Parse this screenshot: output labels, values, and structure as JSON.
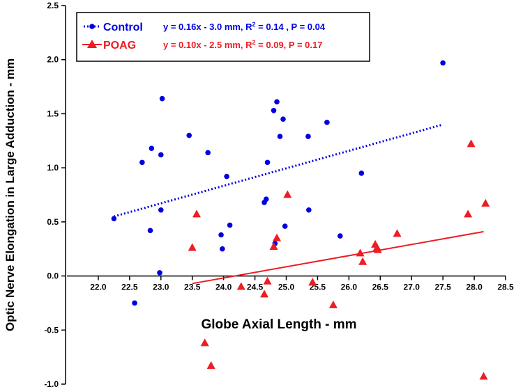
{
  "chart_data": {
    "type": "scatter",
    "xlabel": "Globe Axial Length - mm",
    "ylabel": "Optic Nerve Elongation in Large Adduction - mm",
    "xlim": [
      21.5,
      28.5
    ],
    "ylim": [
      -1.0,
      2.5
    ],
    "x_ticks": [
      "22.0",
      "22.5",
      "23.0",
      "23.5",
      "24.0",
      "24.5",
      "25.0",
      "25.5",
      "26.0",
      "26.5",
      "27.0",
      "27.5",
      "28.0",
      "28.5"
    ],
    "x_tick_values": [
      22.0,
      22.5,
      23.0,
      23.5,
      24.0,
      24.5,
      25.0,
      25.5,
      26.0,
      26.5,
      27.0,
      27.5,
      28.0,
      28.5
    ],
    "y_ticks": [
      "2.5",
      "2.0",
      "1.5",
      "1.0",
      "0.5",
      "0.0",
      "-0.5",
      "-1.0"
    ],
    "y_tick_values": [
      2.5,
      2.0,
      1.5,
      1.0,
      0.5,
      0.0,
      -0.5,
      -1.0
    ],
    "legend_position": "top-left",
    "colors": {
      "control": "#0000e0",
      "poag": "#ee1c24"
    },
    "series": [
      {
        "name": "Control",
        "marker": "circle",
        "line_style": "dotted",
        "fit_label": "y = 0.16x - 3.0 mm, R",
        "fit_sup": "2",
        "fit_tail": " = 0.14 , P = 0.04",
        "fit_line": [
          [
            22.25,
            0.55
          ],
          [
            27.5,
            1.4
          ]
        ],
        "points": [
          [
            22.25,
            0.53
          ],
          [
            22.58,
            -0.25
          ],
          [
            22.7,
            1.05
          ],
          [
            22.83,
            0.42
          ],
          [
            22.85,
            1.18
          ],
          [
            22.98,
            0.03
          ],
          [
            23.0,
            1.12
          ],
          [
            23.02,
            1.64
          ],
          [
            23.0,
            0.61
          ],
          [
            23.45,
            1.3
          ],
          [
            23.75,
            1.14
          ],
          [
            23.96,
            0.38
          ],
          [
            23.98,
            0.25
          ],
          [
            24.05,
            0.92
          ],
          [
            24.1,
            0.47
          ],
          [
            24.65,
            0.68
          ],
          [
            24.68,
            0.71
          ],
          [
            24.7,
            1.05
          ],
          [
            24.8,
            1.53
          ],
          [
            24.82,
            0.3
          ],
          [
            24.85,
            1.61
          ],
          [
            24.9,
            1.29
          ],
          [
            24.95,
            1.45
          ],
          [
            24.98,
            0.46
          ],
          [
            25.35,
            1.29
          ],
          [
            25.36,
            0.61
          ],
          [
            25.65,
            1.42
          ],
          [
            25.86,
            0.37
          ],
          [
            26.2,
            0.95
          ],
          [
            27.5,
            1.97
          ]
        ]
      },
      {
        "name": "POAG",
        "marker": "triangle",
        "line_style": "solid",
        "fit_label": "y = 0.10x - 2.5 mm, R",
        "fit_sup": "2",
        "fit_tail": " = 0.09,  P = 0.17",
        "fit_line": [
          [
            23.5,
            -0.07
          ],
          [
            28.15,
            0.41
          ]
        ],
        "points": [
          [
            23.5,
            0.26
          ],
          [
            23.57,
            0.57
          ],
          [
            23.7,
            -0.62
          ],
          [
            23.8,
            -0.83
          ],
          [
            24.28,
            -0.1
          ],
          [
            24.65,
            -0.17
          ],
          [
            24.7,
            -0.05
          ],
          [
            24.8,
            0.27
          ],
          [
            24.85,
            0.35
          ],
          [
            25.02,
            0.75
          ],
          [
            25.42,
            -0.06
          ],
          [
            25.75,
            -0.27
          ],
          [
            26.18,
            0.21
          ],
          [
            26.22,
            0.13
          ],
          [
            26.42,
            0.29
          ],
          [
            26.45,
            0.26
          ],
          [
            26.46,
            0.24
          ],
          [
            26.77,
            0.39
          ],
          [
            27.9,
            0.57
          ],
          [
            27.95,
            1.22
          ],
          [
            28.15,
            -0.93
          ],
          [
            28.18,
            0.67
          ]
        ]
      }
    ]
  }
}
